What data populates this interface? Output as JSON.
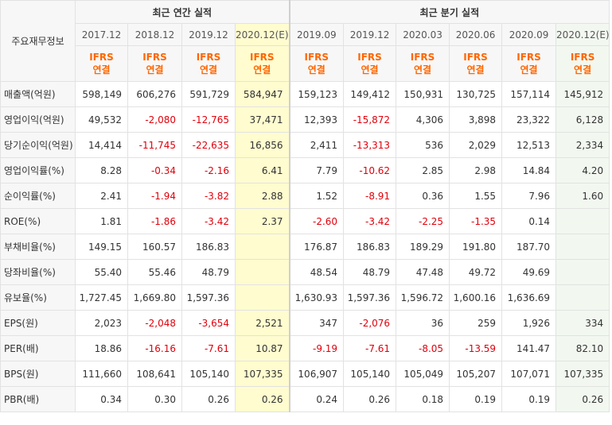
{
  "corner_label": "주요재무정보",
  "group_headers": {
    "annual": "최근 연간 실적",
    "quarter": "최근 분기 실적"
  },
  "periods": [
    "2017.12",
    "2018.12",
    "2019.12",
    "2020.12(E)",
    "2019.09",
    "2019.12",
    "2020.03",
    "2020.06",
    "2020.09",
    "2020.12(E)"
  ],
  "ifrs": {
    "line1": "IFRS",
    "line2": "연결"
  },
  "rows": [
    {
      "label": "매출액(억원)",
      "values": [
        "598,149",
        "606,276",
        "591,729",
        "584,947",
        "159,123",
        "149,412",
        "150,931",
        "130,725",
        "157,114",
        "145,912"
      ]
    },
    {
      "label": "영업이익(억원)",
      "values": [
        "49,532",
        "-2,080",
        "-12,765",
        "37,471",
        "12,393",
        "-15,872",
        "4,306",
        "3,898",
        "23,322",
        "6,128"
      ]
    },
    {
      "label": "당기순이익(억원)",
      "values": [
        "14,414",
        "-11,745",
        "-22,635",
        "16,856",
        "2,411",
        "-13,313",
        "536",
        "2,029",
        "12,513",
        "2,334"
      ]
    },
    {
      "label": "영업이익률(%)",
      "values": [
        "8.28",
        "-0.34",
        "-2.16",
        "6.41",
        "7.79",
        "-10.62",
        "2.85",
        "2.98",
        "14.84",
        "4.20"
      ]
    },
    {
      "label": "순이익률(%)",
      "values": [
        "2.41",
        "-1.94",
        "-3.82",
        "2.88",
        "1.52",
        "-8.91",
        "0.36",
        "1.55",
        "7.96",
        "1.60"
      ]
    },
    {
      "label": "ROE(%)",
      "values": [
        "1.81",
        "-1.86",
        "-3.42",
        "2.37",
        "-2.60",
        "-3.42",
        "-2.25",
        "-1.35",
        "0.14",
        ""
      ]
    },
    {
      "label": "부채비율(%)",
      "values": [
        "149.15",
        "160.57",
        "186.83",
        "",
        "176.87",
        "186.83",
        "189.29",
        "191.80",
        "187.70",
        ""
      ]
    },
    {
      "label": "당좌비율(%)",
      "values": [
        "55.40",
        "55.46",
        "48.79",
        "",
        "48.54",
        "48.79",
        "47.48",
        "49.72",
        "49.69",
        ""
      ]
    },
    {
      "label": "유보율(%)",
      "values": [
        "1,727.45",
        "1,669.80",
        "1,597.36",
        "",
        "1,630.93",
        "1,597.36",
        "1,596.72",
        "1,600.16",
        "1,636.69",
        ""
      ]
    },
    {
      "label": "EPS(원)",
      "values": [
        "2,023",
        "-2,048",
        "-3,654",
        "2,521",
        "347",
        "-2,076",
        "36",
        "259",
        "1,926",
        "334"
      ]
    },
    {
      "label": "PER(배)",
      "values": [
        "18.86",
        "-16.16",
        "-7.61",
        "10.87",
        "-9.19",
        "-7.61",
        "-8.05",
        "-13.59",
        "141.47",
        "82.10"
      ]
    },
    {
      "label": "BPS(원)",
      "values": [
        "111,660",
        "108,641",
        "105,140",
        "107,335",
        "106,907",
        "105,140",
        "105,049",
        "105,207",
        "107,071",
        "107,335"
      ]
    },
    {
      "label": "PBR(배)",
      "values": [
        "0.34",
        "0.30",
        "0.26",
        "0.26",
        "0.24",
        "0.26",
        "0.18",
        "0.19",
        "0.19",
        "0.26"
      ]
    }
  ],
  "colors": {
    "ifrs": "#ff6600",
    "negative": "#e0000b",
    "estimate_annual_bg": "#fffccf",
    "estimate_quarter_bg": "#f2f8f0"
  }
}
